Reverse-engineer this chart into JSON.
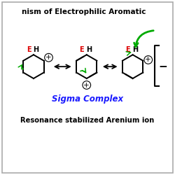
{
  "title_text": "nism of Electrophilic Aromatic",
  "sigma_complex_text": "Sigma Complex",
  "resonance_text": "Resonance stabilized Arenium ion",
  "bg_color": "#ffffff",
  "border_color": "#aaaaaa",
  "title_color": "#000000",
  "sigma_color": "#1a1aff",
  "resonance_color": "#000000",
  "E_color": "#dd0000",
  "green_color": "#00aa00",
  "black_color": "#000000",
  "figsize": [
    2.5,
    2.5
  ],
  "dpi": 100,
  "xlim": [
    0,
    10
  ],
  "ylim": [
    0,
    10
  ]
}
